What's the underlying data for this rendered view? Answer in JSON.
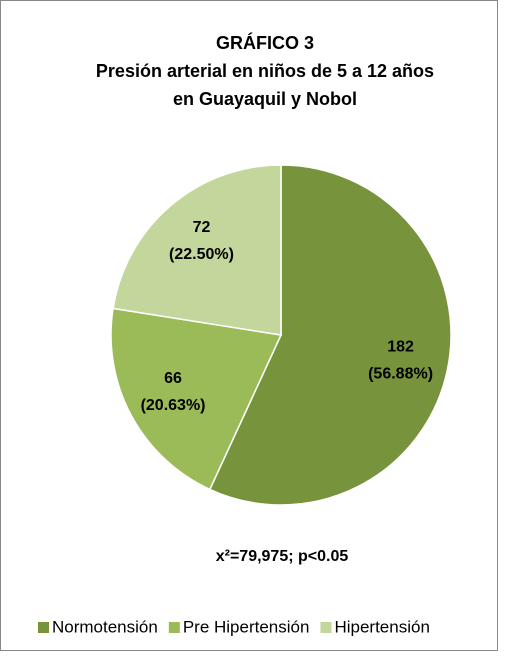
{
  "chart_data": {
    "type": "pie",
    "title": "GRÁFICO 3",
    "subtitle": [
      "Presión arterial en niños de 5 a 12 años",
      "en Guayaquil y Nobol"
    ],
    "categories": [
      "Normotensión",
      "Pre Hipertensión",
      "Hipertensión"
    ],
    "values": [
      182,
      66,
      72
    ],
    "percent_labels": [
      "(56.88%)",
      "(20.63%)",
      "(22.50%)"
    ],
    "colors": [
      "#77933c",
      "#9bbb59",
      "#c3d69b"
    ],
    "annotation": "x²=79,975; p<0.05",
    "legend": "bottom"
  }
}
